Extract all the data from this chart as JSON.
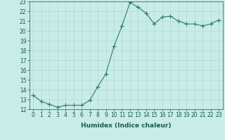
{
  "x": [
    0,
    1,
    2,
    3,
    4,
    5,
    6,
    7,
    8,
    9,
    10,
    11,
    12,
    13,
    14,
    15,
    16,
    17,
    18,
    19,
    20,
    21,
    22,
    23
  ],
  "y": [
    13.4,
    12.8,
    12.5,
    12.2,
    12.4,
    12.4,
    12.4,
    12.9,
    14.3,
    15.6,
    18.4,
    20.5,
    22.9,
    22.4,
    21.8,
    20.7,
    21.4,
    21.5,
    21.0,
    20.7,
    20.7,
    20.5,
    20.7,
    21.1
  ],
  "line_color": "#2e7d6e",
  "marker": "+",
  "marker_size": 4,
  "bg_color": "#c8ece8",
  "grid_color": "#b8d8d4",
  "xlabel": "Humidex (Indice chaleur)",
  "xlim": [
    -0.5,
    23.5
  ],
  "ylim": [
    12,
    23
  ],
  "yticks": [
    12,
    13,
    14,
    15,
    16,
    17,
    18,
    19,
    20,
    21,
    22,
    23
  ],
  "xticks": [
    0,
    1,
    2,
    3,
    4,
    5,
    6,
    7,
    8,
    9,
    10,
    11,
    12,
    13,
    14,
    15,
    16,
    17,
    18,
    19,
    20,
    21,
    22,
    23
  ],
  "label_fontsize": 6.5,
  "tick_fontsize": 5.5,
  "linewidth": 0.8,
  "marker_lw": 0.8
}
